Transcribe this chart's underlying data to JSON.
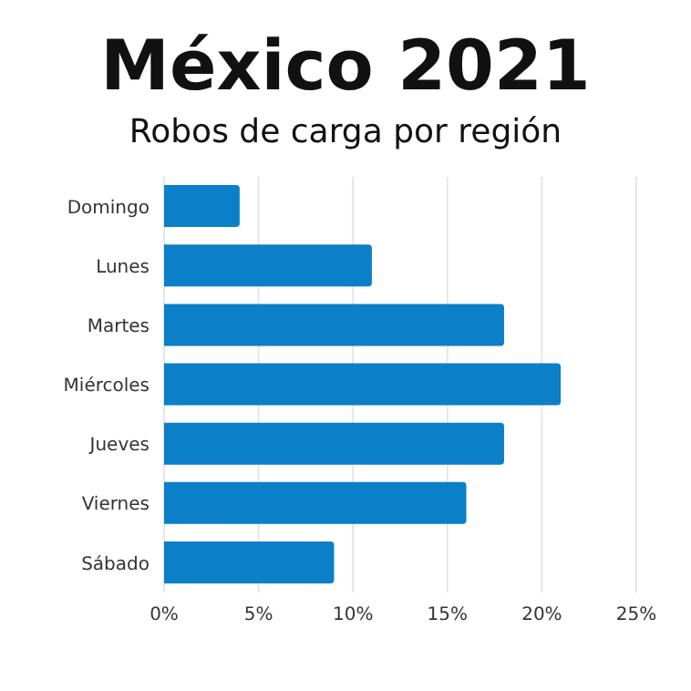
{
  "chart_data": {
    "type": "bar",
    "orientation": "horizontal",
    "title": "México 2021",
    "subtitle": "Robos de carga por región",
    "categories": [
      "Domingo",
      "Lunes",
      "Martes",
      "Miércoles",
      "Jueves",
      "Viernes",
      "Sábado"
    ],
    "values": [
      4,
      11,
      18,
      21,
      18,
      16,
      9
    ],
    "color": "#0b7fc7",
    "xlim": [
      0,
      25
    ],
    "xticks": [
      {
        "value": 0,
        "label": "0%"
      },
      {
        "value": 5,
        "label": "5%"
      },
      {
        "value": 10,
        "label": "10%"
      },
      {
        "value": 15,
        "label": "15%"
      },
      {
        "value": 20,
        "label": "20%"
      },
      {
        "value": 25,
        "label": "25%"
      }
    ],
    "grid": "x"
  }
}
